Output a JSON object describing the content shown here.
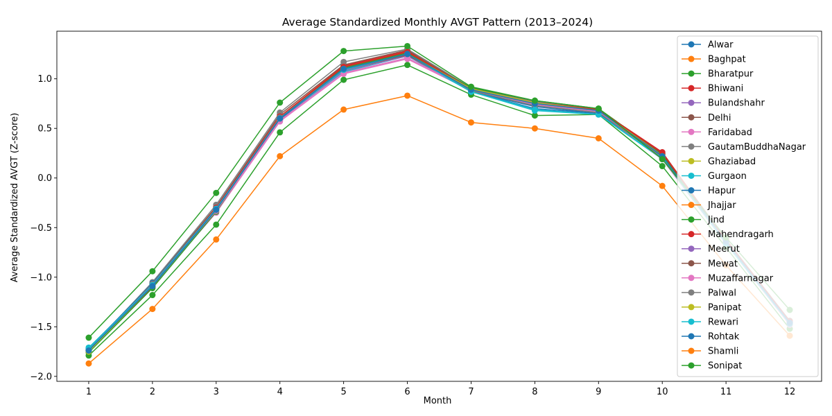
{
  "chart_data": {
    "type": "line",
    "title": "Average Standardized Monthly AVGT Pattern (2013–2024)",
    "xlabel": "Month",
    "ylabel": "Average Standardized AVGT (Z-score)",
    "x": [
      1,
      2,
      3,
      4,
      5,
      6,
      7,
      8,
      9,
      10,
      11,
      12
    ],
    "xlim": [
      0.5,
      12.5
    ],
    "ylim": [
      -2.05,
      1.48
    ],
    "yticks": [
      -2.0,
      -1.5,
      -1.0,
      -0.5,
      0.0,
      0.5,
      1.0
    ],
    "ytick_labels": [
      "−2.0",
      "−1.5",
      "−1.0",
      "−0.5",
      "0.0",
      "0.5",
      "1.0"
    ],
    "grid": false,
    "legend_position": "right",
    "series": [
      {
        "name": "Alwar",
        "color": "#1f77b4",
        "values": [
          -1.72,
          -1.07,
          -0.3,
          0.6,
          1.1,
          1.25,
          0.87,
          0.7,
          0.65,
          0.21,
          -0.65,
          -1.46
        ]
      },
      {
        "name": "Baghpat",
        "color": "#ff7f0e",
        "values": [
          -1.74,
          -1.08,
          -0.31,
          0.61,
          1.11,
          1.26,
          0.89,
          0.74,
          0.67,
          0.22,
          -0.64,
          -1.47
        ]
      },
      {
        "name": "Bharatpur",
        "color": "#2ca02c",
        "values": [
          -1.79,
          -1.18,
          -0.47,
          0.46,
          0.99,
          1.14,
          0.84,
          0.63,
          0.64,
          0.12,
          -0.7,
          -1.52
        ]
      },
      {
        "name": "Bhiwani",
        "color": "#d62728",
        "values": [
          -1.75,
          -1.1,
          -0.3,
          0.62,
          1.13,
          1.28,
          0.91,
          0.77,
          0.69,
          0.26,
          -0.63,
          -1.45
        ]
      },
      {
        "name": "Bulandshahr",
        "color": "#9467bd",
        "values": [
          -1.74,
          -1.08,
          -0.32,
          0.59,
          1.06,
          1.21,
          0.89,
          0.75,
          0.68,
          0.21,
          -0.65,
          -1.47
        ]
      },
      {
        "name": "Delhi",
        "color": "#8c564b",
        "values": [
          -1.73,
          -1.06,
          -0.29,
          0.64,
          1.14,
          1.29,
          0.9,
          0.76,
          0.68,
          0.25,
          -0.62,
          -1.44
        ]
      },
      {
        "name": "Faridabad",
        "color": "#e377c2",
        "values": [
          -1.72,
          -1.09,
          -0.35,
          0.57,
          1.05,
          1.2,
          0.88,
          0.73,
          0.67,
          0.19,
          -0.66,
          -1.48
        ]
      },
      {
        "name": "GautamBuddhaNagar",
        "color": "#7f7f7f",
        "values": [
          -1.73,
          -1.05,
          -0.27,
          0.66,
          1.17,
          1.3,
          0.91,
          0.77,
          0.69,
          0.23,
          -0.63,
          -1.45
        ]
      },
      {
        "name": "Ghaziabad",
        "color": "#bcbd22",
        "values": [
          -1.74,
          -1.07,
          -0.31,
          0.6,
          1.09,
          1.24,
          0.88,
          0.73,
          0.66,
          0.2,
          -0.65,
          -1.46
        ]
      },
      {
        "name": "Gurgaon",
        "color": "#17becf",
        "values": [
          -1.71,
          -1.08,
          -0.33,
          0.58,
          1.07,
          1.23,
          0.87,
          0.68,
          0.64,
          0.19,
          -0.66,
          -1.47
        ]
      },
      {
        "name": "Hapur",
        "color": "#1f77b4",
        "values": [
          -1.72,
          -1.06,
          -0.31,
          0.59,
          1.09,
          1.25,
          0.87,
          0.72,
          0.65,
          0.2,
          -0.65,
          -1.46
        ]
      },
      {
        "name": "Jhajjar",
        "color": "#ff7f0e",
        "values": [
          -1.75,
          -1.09,
          -0.31,
          0.62,
          1.12,
          1.27,
          0.9,
          0.75,
          0.68,
          0.24,
          -0.64,
          -1.46
        ]
      },
      {
        "name": "Jind",
        "color": "#2ca02c",
        "values": [
          -1.76,
          -1.11,
          -0.34,
          0.6,
          1.11,
          1.26,
          0.91,
          0.78,
          0.7,
          0.24,
          -0.64,
          -1.47
        ]
      },
      {
        "name": "Mahendragarh",
        "color": "#d62728",
        "values": [
          -1.74,
          -1.08,
          -0.3,
          0.62,
          1.12,
          1.27,
          0.9,
          0.76,
          0.69,
          0.25,
          -0.63,
          -1.45
        ]
      },
      {
        "name": "Meerut",
        "color": "#9467bd",
        "values": [
          -1.74,
          -1.07,
          -0.31,
          0.6,
          1.08,
          1.23,
          0.89,
          0.75,
          0.68,
          0.21,
          -0.65,
          -1.46
        ]
      },
      {
        "name": "Mewat",
        "color": "#8c564b",
        "values": [
          -1.73,
          -1.07,
          -0.31,
          0.6,
          1.09,
          1.24,
          0.88,
          0.73,
          0.66,
          0.21,
          -0.65,
          -1.46
        ]
      },
      {
        "name": "Muzaffarnagar",
        "color": "#e377c2",
        "values": [
          -1.73,
          -1.08,
          -0.33,
          0.58,
          1.06,
          1.21,
          0.89,
          0.74,
          0.67,
          0.19,
          -0.66,
          -1.47
        ]
      },
      {
        "name": "Palwal",
        "color": "#7f7f7f",
        "values": [
          -1.73,
          -1.07,
          -0.31,
          0.61,
          1.1,
          1.25,
          0.88,
          0.73,
          0.66,
          0.21,
          -0.65,
          -1.46
        ]
      },
      {
        "name": "Panipat",
        "color": "#bcbd22",
        "values": [
          -1.75,
          -1.09,
          -0.32,
          0.6,
          1.1,
          1.25,
          0.9,
          0.76,
          0.68,
          0.22,
          -0.65,
          -1.47
        ]
      },
      {
        "name": "Rewari",
        "color": "#17becf",
        "values": [
          -1.72,
          -1.08,
          -0.31,
          0.6,
          1.09,
          1.25,
          0.87,
          0.69,
          0.64,
          0.2,
          -0.66,
          -1.47
        ]
      },
      {
        "name": "Rohtak",
        "color": "#1f77b4",
        "values": [
          -1.74,
          -1.09,
          -0.32,
          0.6,
          1.1,
          1.25,
          0.89,
          0.75,
          0.68,
          0.22,
          -0.64,
          -1.46
        ]
      },
      {
        "name": "Shamli",
        "color": "#ff7f0e",
        "values": [
          -1.87,
          -1.32,
          -0.62,
          0.22,
          0.69,
          0.83,
          0.56,
          0.5,
          0.4,
          -0.08,
          -0.88,
          -1.59
        ]
      },
      {
        "name": "Sonipat",
        "color": "#2ca02c",
        "values": [
          -1.61,
          -0.94,
          -0.15,
          0.76,
          1.28,
          1.33,
          0.92,
          0.78,
          0.7,
          0.19,
          -0.6,
          -1.33
        ]
      }
    ]
  }
}
